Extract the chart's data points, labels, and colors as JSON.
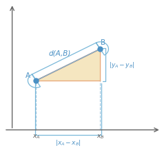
{
  "point_A": [
    0.22,
    0.42
  ],
  "point_B": [
    0.62,
    0.65
  ],
  "triangle_color": "#f5e6c0",
  "triangle_edge_color": "#e8a87c",
  "hyp_color": "#d07050",
  "dot_color": "#4a90c4",
  "bracket_color": "#7ab8d9",
  "dashed_color": "#a0c8e0",
  "label_A": "A",
  "label_B": "B",
  "label_dAB": "d(A,B)",
  "label_xA": "$x_A$",
  "label_xB": "$x_B$",
  "label_xdiff": "$|x_A - x_B|$",
  "label_ydiff": "$|y_A - y_B|$",
  "axis_color": "#666666",
  "text_color": "#4a90c4",
  "font_size": 7.5,
  "dot_size": 5
}
